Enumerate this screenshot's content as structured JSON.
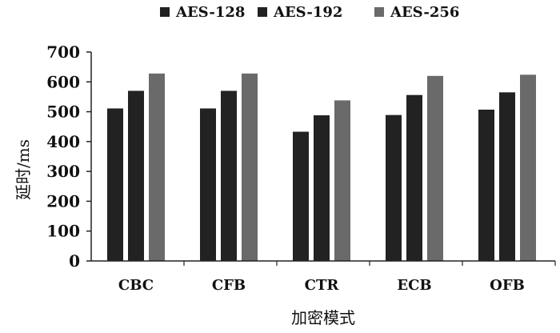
{
  "chart_data": {
    "type": "bar",
    "categories": [
      "CBC",
      "CFB",
      "CTR",
      "ECB",
      "OFB"
    ],
    "series": [
      {
        "name": "AES-128",
        "color": "#222222",
        "values": [
          511,
          511,
          433,
          489,
          507
        ]
      },
      {
        "name": "AES-192",
        "color": "#222222",
        "values": [
          570,
          570,
          488,
          556,
          565
        ]
      },
      {
        "name": "AES-256",
        "color": "#6a6a6a",
        "values": [
          628,
          628,
          538,
          620,
          624
        ]
      }
    ],
    "xlabel": "加密模式",
    "ylabel": "延时/ms",
    "ylim": [
      0,
      700
    ],
    "yticks": [
      0,
      100,
      200,
      300,
      400,
      500,
      600,
      700
    ],
    "grid": false,
    "legend_position": "top-center"
  }
}
